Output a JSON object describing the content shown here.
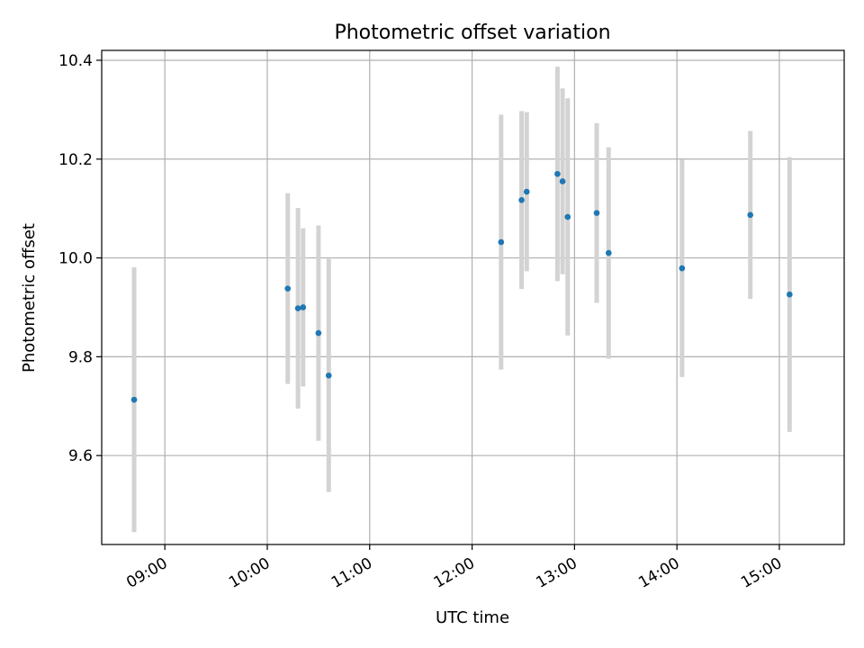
{
  "chart_data": {
    "type": "scatter",
    "title": "Photometric offset variation",
    "xlabel": "UTC time",
    "ylabel": "Photometric offset",
    "xlim": [
      "08:23",
      "15:38"
    ],
    "ylim": [
      9.42,
      10.42
    ],
    "x_ticks": [
      "09:00",
      "10:00",
      "11:00",
      "12:00",
      "13:00",
      "14:00",
      "15:00"
    ],
    "y_ticks": [
      9.6,
      9.8,
      10.0,
      10.2,
      10.4
    ],
    "grid": true,
    "colors": {
      "points": "#1f77b4",
      "errorbars": "#d3d3d3",
      "grid": "#b0b0b0"
    },
    "points": [
      {
        "x": "08:42",
        "y": 9.713,
        "yerr": 0.268
      },
      {
        "x": "10:12",
        "y": 9.938,
        "yerr": 0.193
      },
      {
        "x": "10:18",
        "y": 9.898,
        "yerr": 0.203
      },
      {
        "x": "10:21",
        "y": 9.9,
        "yerr": 0.16
      },
      {
        "x": "10:30",
        "y": 9.848,
        "yerr": 0.218
      },
      {
        "x": "10:36",
        "y": 9.762,
        "yerr": 0.236
      },
      {
        "x": "12:17",
        "y": 10.032,
        "yerr": 0.258
      },
      {
        "x": "12:29",
        "y": 10.117,
        "yerr": 0.18
      },
      {
        "x": "12:32",
        "y": 10.134,
        "yerr": 0.161
      },
      {
        "x": "12:50",
        "y": 10.17,
        "yerr": 0.217
      },
      {
        "x": "12:53",
        "y": 10.155,
        "yerr": 0.188
      },
      {
        "x": "12:56",
        "y": 10.083,
        "yerr": 0.24
      },
      {
        "x": "13:13",
        "y": 10.091,
        "yerr": 0.182
      },
      {
        "x": "13:20",
        "y": 10.01,
        "yerr": 0.214
      },
      {
        "x": "14:03",
        "y": 9.979,
        "yerr": 0.22
      },
      {
        "x": "14:43",
        "y": 10.087,
        "yerr": 0.17
      },
      {
        "x": "15:06",
        "y": 9.926,
        "yerr": 0.278
      }
    ]
  }
}
